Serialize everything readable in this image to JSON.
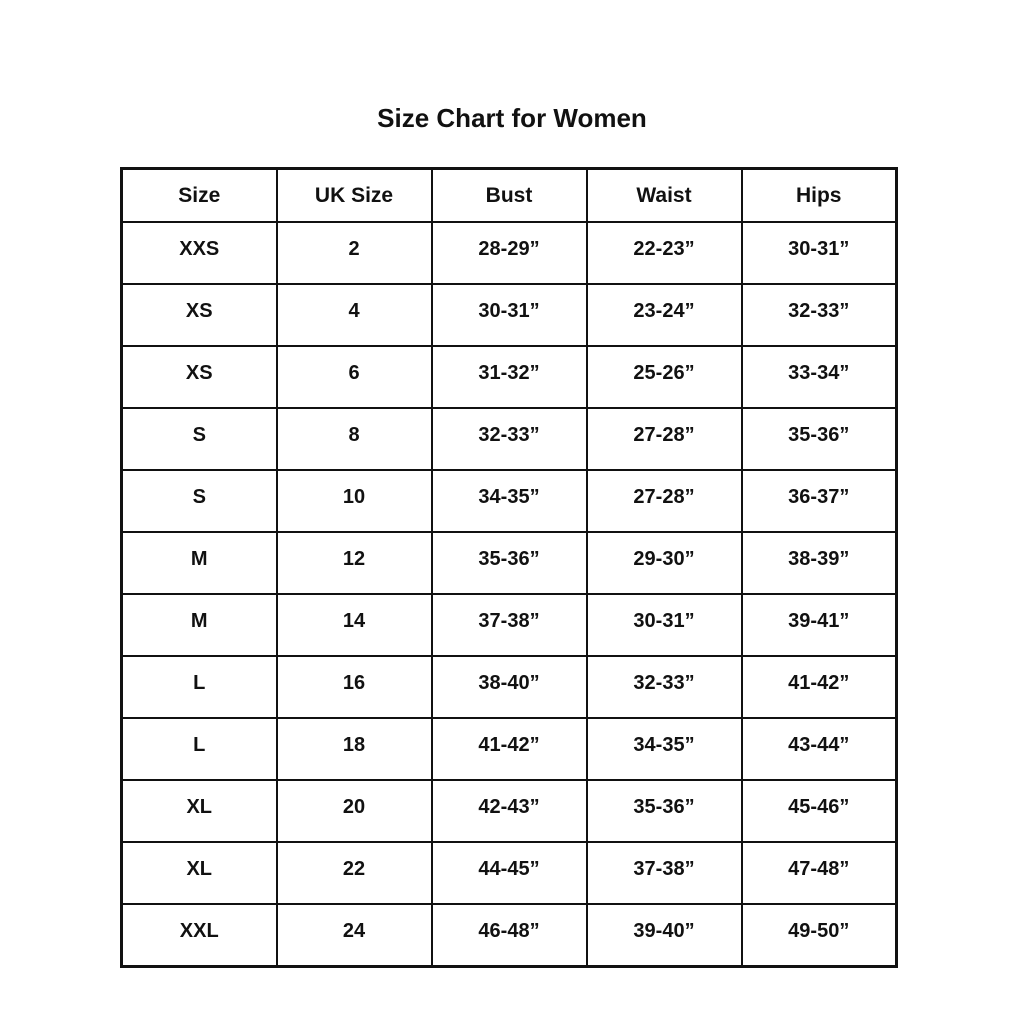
{
  "title": "Size Chart for Women",
  "colors": {
    "background": "#ffffff",
    "text": "#111111",
    "border": "#111111"
  },
  "chart_data": {
    "type": "table",
    "title": "Size Chart for Women",
    "columns": [
      "Size",
      "UK Size",
      "Bust",
      "Waist",
      "Hips"
    ],
    "rows": [
      [
        "XXS",
        "2",
        "28-29”",
        "22-23”",
        "30-31”"
      ],
      [
        "XS",
        "4",
        "30-31”",
        "23-24”",
        "32-33”"
      ],
      [
        "XS",
        "6",
        "31-32”",
        "25-26”",
        "33-34”"
      ],
      [
        "S",
        "8",
        "32-33”",
        "27-28”",
        "35-36”"
      ],
      [
        "S",
        "10",
        "34-35”",
        "27-28”",
        "36-37”"
      ],
      [
        "M",
        "12",
        "35-36”",
        "29-30”",
        "38-39”"
      ],
      [
        "M",
        "14",
        "37-38”",
        "30-31”",
        "39-41”"
      ],
      [
        "L",
        "16",
        "38-40”",
        "32-33”",
        "41-42”"
      ],
      [
        "L",
        "18",
        "41-42”",
        "34-35”",
        "43-44”"
      ],
      [
        "XL",
        "20",
        "42-43”",
        "35-36”",
        "45-46”"
      ],
      [
        "XL",
        "22",
        "44-45”",
        "37-38”",
        "47-48”"
      ],
      [
        "XXL",
        "24",
        "46-48”",
        "39-40”",
        "49-50”"
      ]
    ],
    "layout_hints": {
      "grid": true,
      "header_row": true,
      "text_style": "bold",
      "alignment": "center"
    }
  }
}
